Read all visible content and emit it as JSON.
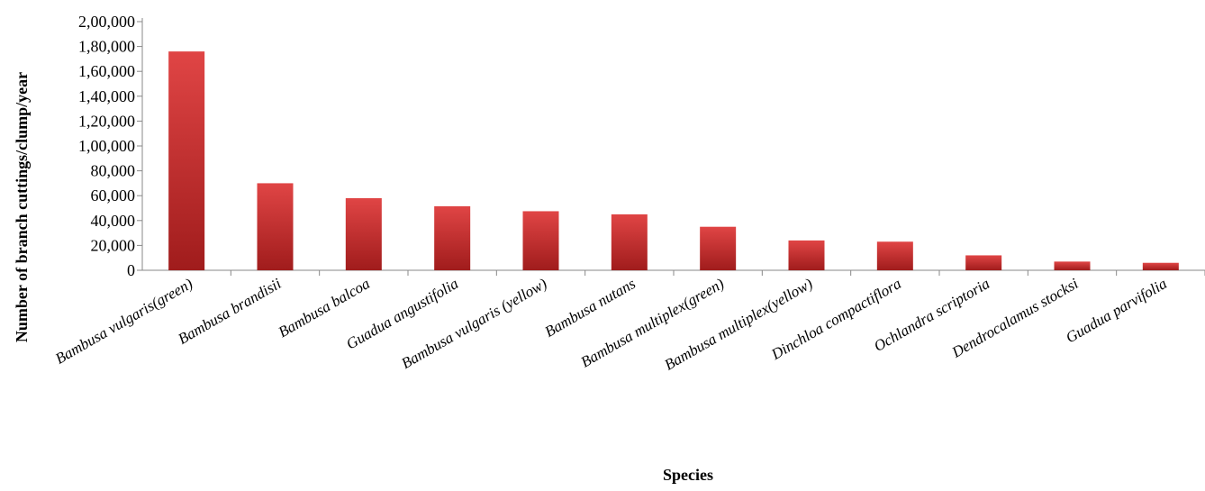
{
  "chart_data": {
    "type": "bar",
    "title": "",
    "xlabel": "Species",
    "ylabel": "Number of branch cuttings/clump/year",
    "ylim": [
      0,
      200000
    ],
    "yticks": [
      0,
      20000,
      40000,
      60000,
      80000,
      100000,
      120000,
      140000,
      160000,
      180000,
      200000
    ],
    "ytick_labels": [
      "0",
      "20,000",
      "40,000",
      "60,000",
      "80,000",
      "1,00,000",
      "1,20,000",
      "1,40,000",
      "1,60,000",
      "1,80,000",
      "2,00,000"
    ],
    "categories": [
      "Bambusa vulgaris(green)",
      "Bambusa brandisii",
      "Bambusa balcoa",
      "Guadua angustifolia",
      "Bambusa vulgaris (yellow)",
      "Bambusa nutans",
      "Bambusa multiplex(green)",
      "Bambusa multiplex(yellow)",
      "Dinchloa compactiflora",
      "Ochlandra scriptoria",
      "Dendrocalamus stocksi",
      "Guadua parvifolia"
    ],
    "values": [
      176000,
      70000,
      58000,
      51500,
      47500,
      45000,
      35000,
      24000,
      23000,
      12000,
      7000,
      6000
    ],
    "grid": false,
    "legend": "none",
    "bar_color_top": "#e04545",
    "bar_color_bottom": "#a01c1c",
    "axis_color": "#888888"
  }
}
